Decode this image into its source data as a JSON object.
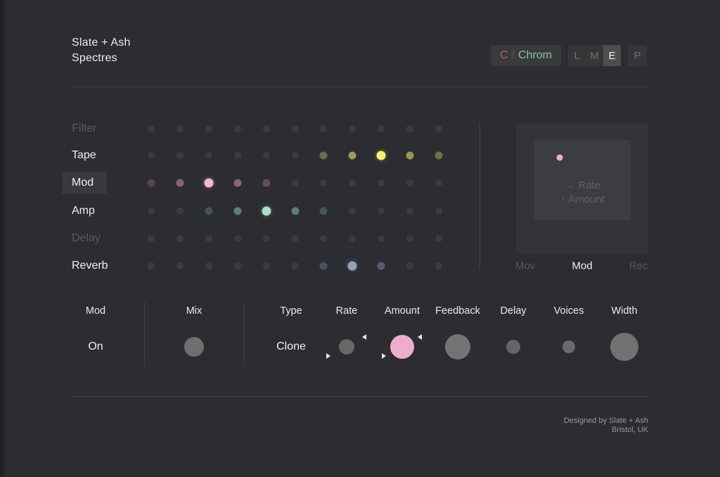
{
  "header": {
    "title_line1": "Slate + Ash",
    "title_line2": "Spectres",
    "key_button": {
      "prefix": "C",
      "separator": "/",
      "label": "Chrom",
      "prefix_color": "#c85b4d",
      "label_color": "#85c3a6"
    },
    "mode_buttons": [
      {
        "label": "L",
        "active": false
      },
      {
        "label": "M",
        "active": false
      },
      {
        "label": "E",
        "active": true
      }
    ],
    "preset_button": "P"
  },
  "effects_matrix": {
    "columns": 11,
    "dim_dot_color": "#3a3c40",
    "rows": [
      {
        "label": "Filter",
        "enabled": false,
        "selected": false,
        "bright_index": -1,
        "dots": [
          null,
          null,
          null,
          null,
          null,
          null,
          null,
          null,
          null,
          null,
          null
        ]
      },
      {
        "label": "Tape",
        "enabled": true,
        "selected": false,
        "bright_index": 8,
        "dots": [
          null,
          null,
          null,
          null,
          null,
          null,
          "#6e6d48",
          "#a19c55",
          "#f5f268",
          "#9c974f",
          "#716e48"
        ]
      },
      {
        "label": "Mod",
        "enabled": true,
        "selected": true,
        "bright_index": 2,
        "dots": [
          "#574551",
          "#8a6177",
          "#f2b6d2",
          "#8d647c",
          "#684d5e",
          null,
          null,
          null,
          null,
          null,
          null
        ]
      },
      {
        "label": "Amp",
        "enabled": true,
        "selected": false,
        "bright_index": 4,
        "dots": [
          null,
          null,
          "#44564e",
          "#5b8070",
          "#a9e0c6",
          "#5b8070",
          "#46584f",
          null,
          null,
          null,
          null
        ]
      },
      {
        "label": "Delay",
        "enabled": false,
        "selected": false,
        "bright_index": -1,
        "dots": [
          null,
          null,
          null,
          null,
          null,
          null,
          null,
          null,
          null,
          null,
          null
        ]
      },
      {
        "label": "Reverb",
        "enabled": true,
        "selected": false,
        "bright_index": 7,
        "dots": [
          null,
          null,
          null,
          null,
          null,
          null,
          "#4a5162",
          "#92a3c2",
          "#545c73",
          null,
          null
        ]
      }
    ]
  },
  "xy_panel": {
    "hint_line1": "→ Rate",
    "hint_line2": "↑ Amount",
    "cursor_color": "#f0aecd",
    "tabs": [
      {
        "label": "Mov",
        "active": false
      },
      {
        "label": "Mod",
        "active": true
      },
      {
        "label": "Rec",
        "active": false
      }
    ]
  },
  "controls": {
    "sections": [
      {
        "header": "Mod",
        "type": "text",
        "value": "On"
      },
      {
        "header": "Mix",
        "type": "knob",
        "size": 28,
        "color": "#6f6f6f",
        "markers": false
      },
      {
        "header": "Type",
        "type": "text",
        "value": "Clone"
      },
      {
        "header": "Rate",
        "type": "knob",
        "size": 22,
        "color": "#686868",
        "markers": true
      },
      {
        "header": "Amount",
        "type": "knob",
        "size": 34,
        "color": "#eeadcd",
        "markers": true
      },
      {
        "header": "Feedback",
        "type": "knob",
        "size": 36,
        "color": "#747474",
        "markers": false
      },
      {
        "header": "Delay",
        "type": "knob",
        "size": 20,
        "color": "#656565",
        "markers": false
      },
      {
        "header": "Voices",
        "type": "knob",
        "size": 18,
        "color": "#6b6b6b",
        "markers": false
      },
      {
        "header": "Width",
        "type": "knob",
        "size": 40,
        "color": "#727272",
        "markers": false
      }
    ]
  },
  "footer": {
    "line1": "Designed by Slate + Ash",
    "line2": "Bristol, UK"
  }
}
